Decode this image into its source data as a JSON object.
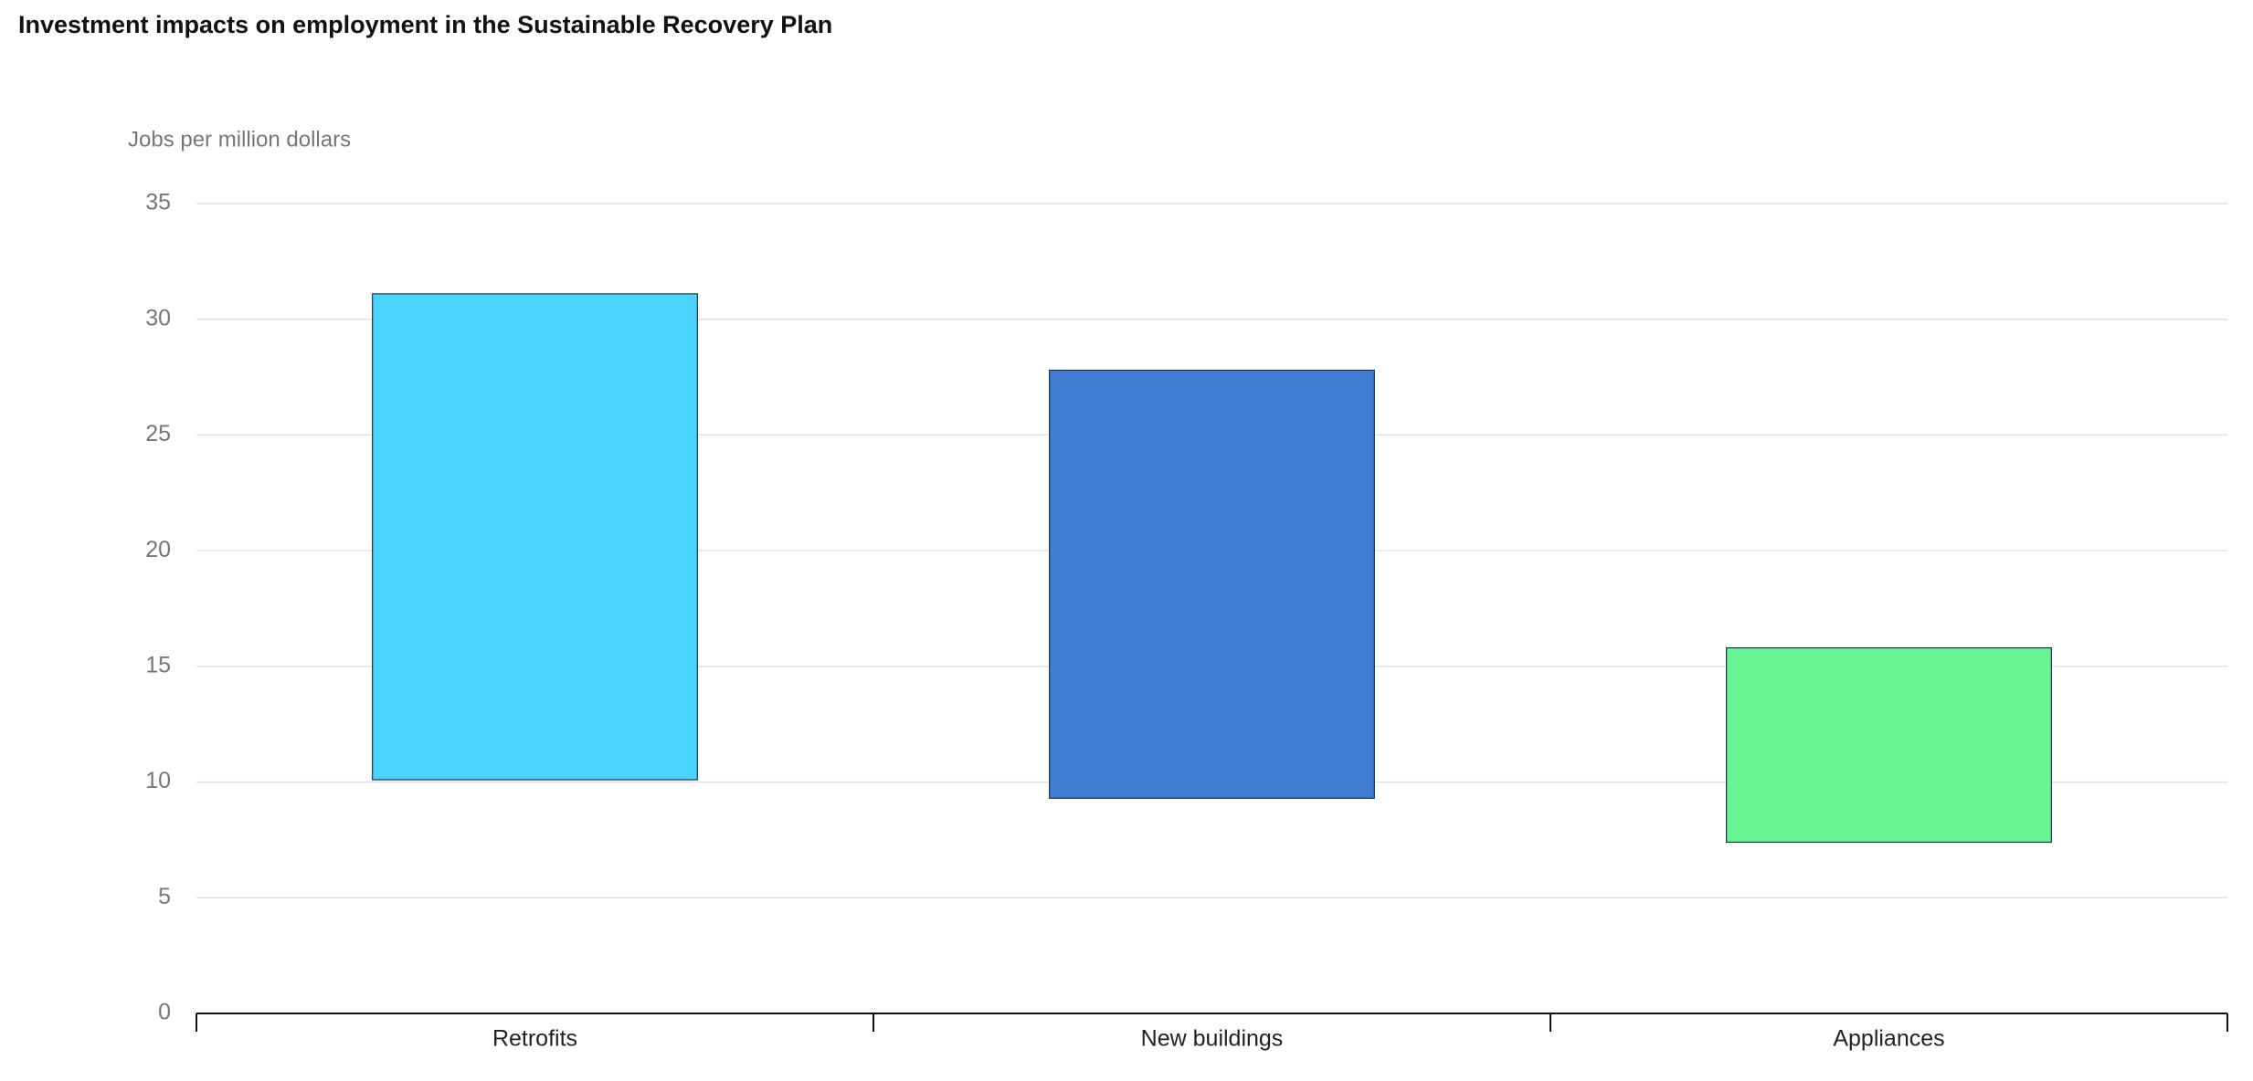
{
  "chart_data": {
    "type": "floating-bar",
    "title": "Investment impacts on employment in the Sustainable Recovery Plan",
    "y_axis_label": "Jobs per million dollars",
    "categories": [
      "Retrofits",
      "New buildings",
      "Appliances"
    ],
    "low": [
      10.1,
      9.3,
      7.4
    ],
    "high": [
      31.1,
      27.8,
      15.8
    ],
    "colors": [
      "#49d3fd",
      "#3f7dd3",
      "#6af594"
    ],
    "ylim": [
      0,
      35
    ],
    "yticks": [
      0,
      5,
      10,
      15,
      20,
      25,
      30,
      35
    ],
    "grid": true
  }
}
